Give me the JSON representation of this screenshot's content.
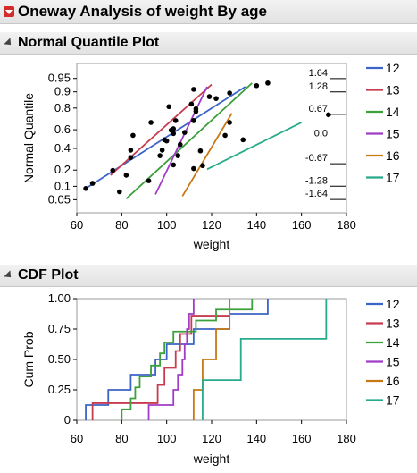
{
  "header": {
    "title": "Oneway Analysis of weight By age"
  },
  "sections": {
    "nqp_title": "Normal Quantile Plot",
    "cdf_title": "CDF Plot"
  },
  "colors": {
    "12": "#3c64c8",
    "13": "#c83c50",
    "14": "#3ca03c",
    "15": "#a03cc8",
    "16": "#c87814",
    "17": "#28aa8c"
  },
  "chart_data": [
    {
      "type": "scatter",
      "title": "Normal Quantile Plot",
      "xlabel": "weight",
      "ylabel": "Normal Quantile",
      "xlim": [
        60,
        180
      ],
      "x_ticks": [
        60,
        80,
        100,
        120,
        140,
        160,
        180
      ],
      "y_tick_labels": [
        "0.05",
        "0.1",
        "0.2",
        "0.4",
        "0.6",
        "0.8",
        "0.9",
        "0.95"
      ],
      "y_tick_probs": [
        0.05,
        0.1,
        0.2,
        0.4,
        0.6,
        0.8,
        0.9,
        0.95
      ],
      "right_tick_labels": [
        "1.64",
        "1.28",
        "0.67",
        "0.0",
        "-0.67",
        "-1.28",
        "-1.64"
      ],
      "right_tick_z": [
        1.64,
        1.28,
        0.67,
        0.0,
        -0.67,
        -1.28,
        -1.64
      ],
      "legend": [
        "12",
        "13",
        "14",
        "15",
        "16",
        "17"
      ],
      "series": [
        {
          "name": "12",
          "points": [
            [
              64,
              -1.34
            ],
            [
              67,
              -1.2
            ],
            [
              76,
              -0.85
            ],
            [
              84,
              -0.5
            ],
            [
              84,
              -0.3
            ],
            [
              85,
              0.1
            ],
            [
              93,
              0.45
            ],
            [
              101,
              0.88
            ],
            [
              128,
              1.25
            ],
            [
              145,
              1.52
            ]
          ],
          "fit": [
            [
              64,
              -1.34
            ],
            [
              135,
              1.42
            ]
          ]
        },
        {
          "name": "13",
          "points": [
            [
              67,
              -1.2
            ],
            [
              99,
              -0.02
            ],
            [
              102,
              0.24
            ],
            [
              104,
              0.5
            ],
            [
              111,
              0.95
            ],
            [
              112,
              1.35
            ]
          ],
          "fit": [
            [
              75,
              -0.98
            ],
            [
              120,
              1.48
            ]
          ]
        },
        {
          "name": "14",
          "points": [
            [
              79,
              -1.43
            ],
            [
              82,
              -0.98
            ],
            [
              97,
              -0.45
            ],
            [
              98,
              -0.3
            ],
            [
              100,
              -0.05
            ],
            [
              103,
              0.15
            ],
            [
              103,
              0.28
            ],
            [
              112,
              0.5
            ],
            [
              113,
              0.75
            ],
            [
              122,
              1.1
            ],
            [
              140,
              1.45
            ]
          ],
          "fit": [
            [
              82,
              -1.62
            ],
            [
              138,
              1.52
            ]
          ]
        },
        {
          "name": "15",
          "points": [
            [
              92,
              -1.13
            ],
            [
              103,
              -0.7
            ],
            [
              105,
              -0.45
            ],
            [
              106,
              -0.15
            ],
            [
              108,
              0.18
            ],
            [
              112,
              0.5
            ],
            [
              113,
              0.82
            ],
            [
              119,
              1.15
            ]
          ],
          "fit": [
            [
              95,
              -1.5
            ],
            [
              118,
              1.42
            ]
          ]
        },
        {
          "name": "16",
          "points": [
            [
              112,
              -0.8
            ],
            [
              115,
              -0.32
            ],
            [
              126,
              0.1
            ],
            [
              128,
              0.45
            ]
          ],
          "fit": [
            [
              107,
              -1.55
            ],
            [
              129,
              0.7
            ]
          ]
        },
        {
          "name": "17",
          "points": [
            [
              116,
              -0.72
            ],
            [
              134,
              -0.02
            ],
            [
              172,
              0.66
            ]
          ],
          "fit": [
            [
              118,
              -0.82
            ],
            [
              160,
              0.45
            ]
          ]
        }
      ]
    },
    {
      "type": "line",
      "title": "CDF Plot",
      "xlabel": "weight",
      "ylabel": "Cum Prob",
      "xlim": [
        60,
        180
      ],
      "ylim": [
        0,
        1
      ],
      "x_ticks": [
        60,
        80,
        100,
        120,
        140,
        160,
        180
      ],
      "y_ticks": [
        "0",
        "0.25",
        "0.50",
        "0.75",
        "1.00"
      ],
      "y_tick_values": [
        0,
        0.25,
        0.5,
        0.75,
        1.0
      ],
      "legend": [
        "12",
        "13",
        "14",
        "15",
        "16",
        "17"
      ],
      "series": [
        {
          "name": "12",
          "steps": [
            [
              64,
              0.125
            ],
            [
              74,
              0.25
            ],
            [
              84,
              0.375
            ],
            [
              95,
              0.5
            ],
            [
              100,
              0.625
            ],
            [
              112,
              0.75
            ],
            [
              128,
              0.875
            ],
            [
              145,
              1.0
            ]
          ]
        },
        {
          "name": "13",
          "steps": [
            [
              67,
              0.14
            ],
            [
              96,
              0.29
            ],
            [
              99,
              0.43
            ],
            [
              104,
              0.57
            ],
            [
              106,
              0.71
            ],
            [
              111,
              0.86
            ],
            [
              128,
              1.0
            ]
          ]
        },
        {
          "name": "14",
          "steps": [
            [
              80,
              0.09
            ],
            [
              84,
              0.18
            ],
            [
              86,
              0.27
            ],
            [
              88,
              0.36
            ],
            [
              93,
              0.45
            ],
            [
              97,
              0.55
            ],
            [
              99,
              0.64
            ],
            [
              103,
              0.73
            ],
            [
              113,
              0.82
            ],
            [
              122,
              0.91
            ],
            [
              138,
              1.0
            ]
          ]
        },
        {
          "name": "15",
          "steps": [
            [
              92,
              0.125
            ],
            [
              103,
              0.25
            ],
            [
              105,
              0.375
            ],
            [
              107,
              0.5
            ],
            [
              108,
              0.625
            ],
            [
              109,
              0.75
            ],
            [
              110,
              0.875
            ],
            [
              112,
              1.0
            ]
          ]
        },
        {
          "name": "16",
          "steps": [
            [
              112,
              0.25
            ],
            [
              116,
              0.5
            ],
            [
              122,
              0.75
            ],
            [
              128,
              1.0
            ]
          ]
        },
        {
          "name": "17",
          "steps": [
            [
              116,
              0.33
            ],
            [
              133,
              0.67
            ],
            [
              171,
              1.0
            ]
          ]
        }
      ]
    }
  ]
}
